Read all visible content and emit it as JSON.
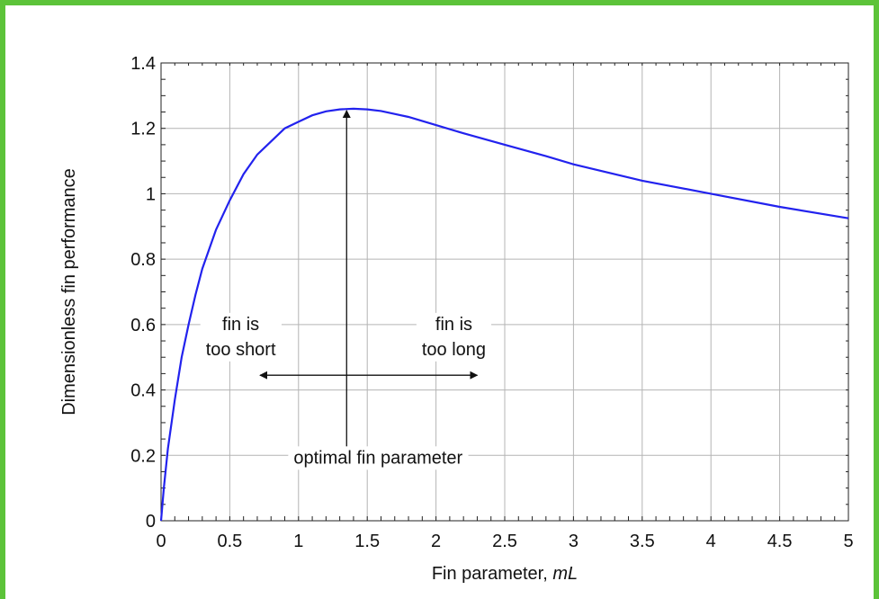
{
  "frame": {
    "border_color": "#5cc339"
  },
  "chart_data": {
    "type": "line",
    "title": "",
    "xlabel_prefix": "Fin parameter, ",
    "xlabel_italic": "mL",
    "ylabel": "Dimensionless fin performance",
    "xlim": [
      0,
      5
    ],
    "ylim": [
      0,
      1.4
    ],
    "x_ticks": [
      0,
      0.5,
      1,
      1.5,
      2,
      2.5,
      3,
      3.5,
      4,
      4.5,
      5
    ],
    "x_tick_labels": [
      "0",
      "0.5",
      "1",
      "1.5",
      "2",
      "2.5",
      "3",
      "3.5",
      "4",
      "4.5",
      "5"
    ],
    "y_ticks": [
      0,
      0.2,
      0.4,
      0.6,
      0.8,
      1,
      1.2,
      1.4
    ],
    "y_tick_labels": [
      "0",
      "0.2",
      "0.4",
      "0.6",
      "0.8",
      "1",
      "1.2",
      "1.4"
    ],
    "grid": true,
    "series": [
      {
        "color": "#2222ee",
        "x": [
          0,
          0.02,
          0.05,
          0.1,
          0.15,
          0.2,
          0.25,
          0.3,
          0.4,
          0.5,
          0.6,
          0.7,
          0.8,
          0.9,
          1.0,
          1.1,
          1.2,
          1.3,
          1.4,
          1.5,
          1.6,
          1.8,
          2.0,
          2.2,
          2.5,
          2.8,
          3.0,
          3.5,
          4.0,
          4.5,
          5.0
        ],
        "y": [
          0,
          0.1,
          0.22,
          0.37,
          0.5,
          0.6,
          0.69,
          0.77,
          0.89,
          0.98,
          1.06,
          1.12,
          1.16,
          1.2,
          1.22,
          1.24,
          1.252,
          1.258,
          1.26,
          1.258,
          1.253,
          1.235,
          1.21,
          1.185,
          1.15,
          1.115,
          1.09,
          1.04,
          1.0,
          0.96,
          0.925
        ]
      }
    ],
    "annotations": {
      "short_line1": "fin is",
      "short_line2": "too short",
      "long_line1": "fin is",
      "long_line2": "too long",
      "optimal": "optimal fin parameter",
      "optimal_x": 1.35,
      "optimal_y": 1.26
    }
  }
}
